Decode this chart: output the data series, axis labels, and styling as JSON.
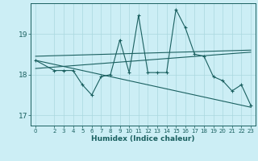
{
  "xlabel": "Humidex (Indice chaleur)",
  "ylabel": "",
  "bg_color": "#cceef5",
  "grid_color": "#aad8df",
  "line_color": "#1a6060",
  "xlim": [
    -0.5,
    23.5
  ],
  "ylim": [
    16.75,
    19.75
  ],
  "yticks": [
    17,
    18,
    19
  ],
  "xticks": [
    0,
    2,
    3,
    4,
    5,
    6,
    7,
    8,
    9,
    10,
    11,
    12,
    13,
    14,
    15,
    16,
    17,
    18,
    19,
    20,
    21,
    22,
    23
  ],
  "line1_x": [
    0,
    2,
    3,
    4,
    5,
    6,
    7,
    8,
    9,
    10,
    11,
    12,
    13,
    14,
    15,
    16,
    17,
    18,
    19,
    20,
    21,
    22,
    23
  ],
  "line1_y": [
    18.35,
    18.1,
    18.1,
    18.1,
    17.75,
    17.5,
    17.95,
    18.0,
    18.85,
    18.05,
    19.45,
    18.05,
    18.05,
    18.05,
    19.6,
    19.15,
    18.5,
    18.45,
    17.95,
    17.85,
    17.6,
    17.75,
    17.25
  ],
  "line2_x": [
    0,
    23
  ],
  "line2_y": [
    18.45,
    18.6
  ],
  "line3_x": [
    0,
    23
  ],
  "line3_y": [
    18.35,
    17.2
  ],
  "line4_x": [
    0,
    23
  ],
  "line4_y": [
    18.15,
    18.55
  ]
}
